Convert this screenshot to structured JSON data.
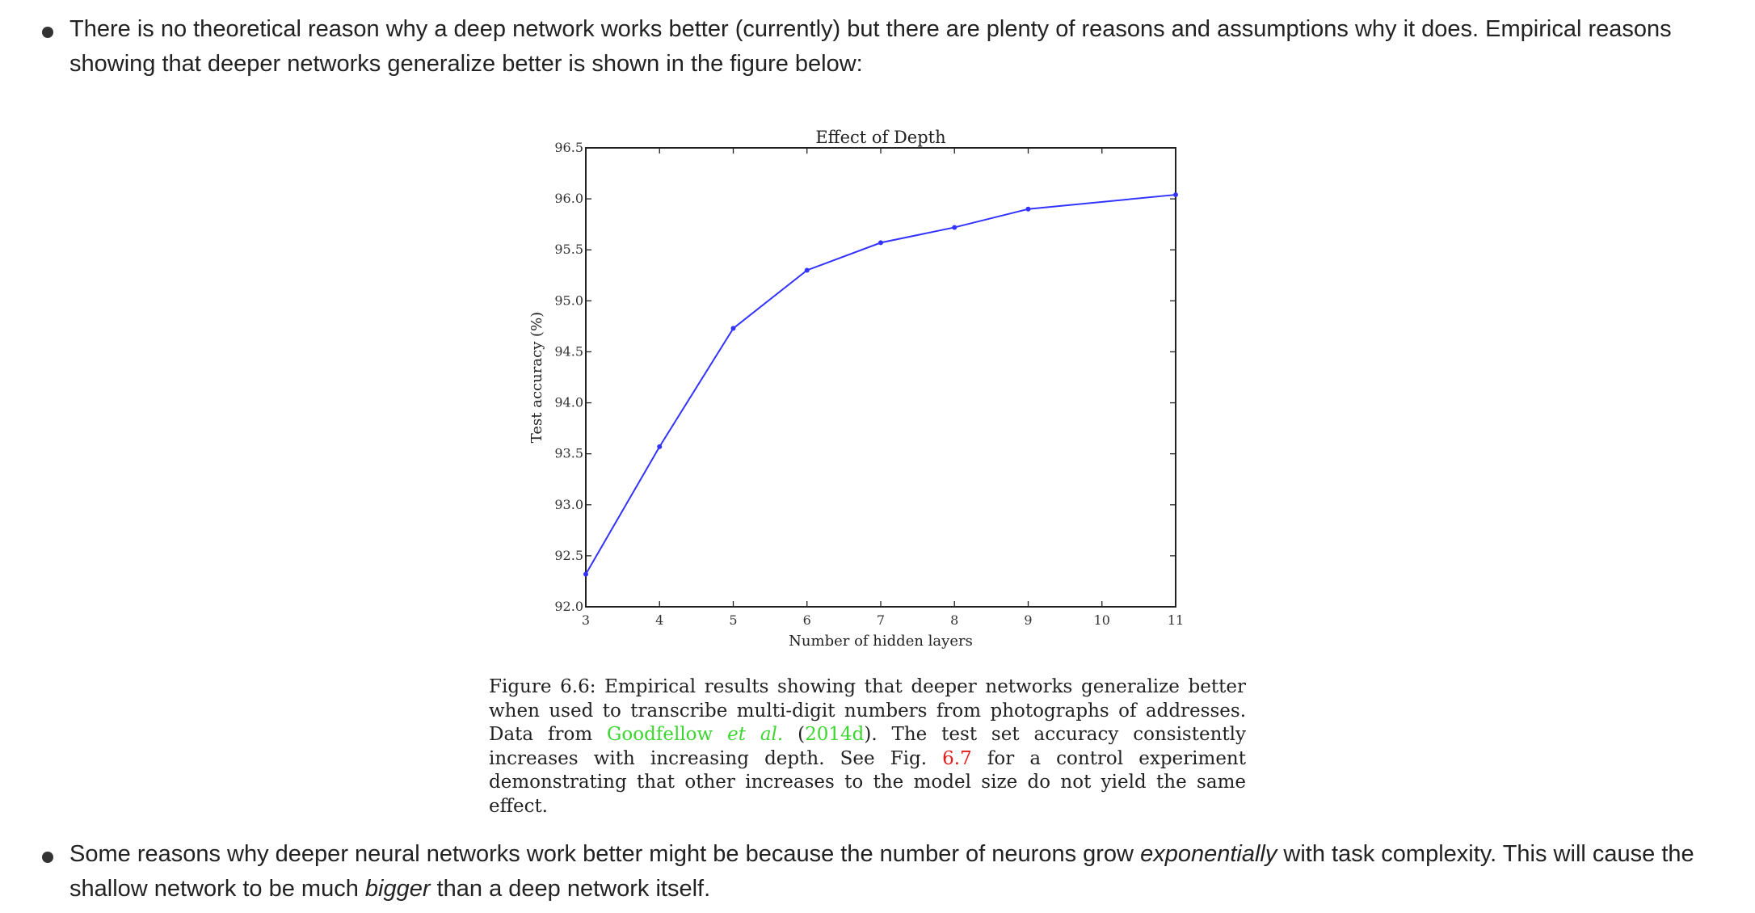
{
  "bullets": [
    {
      "text": "There is no theoretical reason why a deep network works better (currently) but there are plenty of reasons and assumptions why it does. Empirical reasons showing that deeper networks generalize better is shown in the figure below:"
    },
    {
      "text_1": "Some reasons why deeper neural networks work better might be because the number of neurons grow ",
      "em_1": "exponentially",
      "text_2": " with task complexity. This will cause the shallow network to be much ",
      "em_2": "bigger",
      "text_3": " than a deep network itself."
    }
  ],
  "chart_data": {
    "type": "line",
    "title": "Effect of Depth",
    "xlabel": "Number of hidden layers",
    "ylabel": "Test accuracy (%)",
    "x": [
      3,
      4,
      5,
      6,
      7,
      8,
      9,
      10,
      11
    ],
    "xticks": [
      "3",
      "4",
      "5",
      "6",
      "7",
      "8",
      "9",
      "10",
      "11"
    ],
    "yticks": [
      "92.0",
      "92.5",
      "93.0",
      "93.5",
      "94.0",
      "94.5",
      "95.0",
      "95.5",
      "96.0",
      "96.5"
    ],
    "xlim": [
      3,
      11
    ],
    "ylim": [
      92.0,
      96.5
    ],
    "grid": false,
    "series": [
      {
        "x": [
          3,
          4,
          5,
          6,
          7,
          8,
          9,
          11
        ],
        "values": [
          92.32,
          93.57,
          94.73,
          95.3,
          95.57,
          95.72,
          95.9,
          96.04
        ],
        "color": "#3333ff"
      }
    ]
  },
  "caption": {
    "t1": "Figure 6.6: Empirical results showing that deeper networks generalize better when used to transcribe multi-digit numbers from photographs of addresses. Data from ",
    "link_author": "Goodfellow ",
    "link_etal": "et al.",
    "t2": " (",
    "link_year": "2014d",
    "t3": "). The test set accuracy consistently increases with increasing depth. See Fig. ",
    "link_fig": "6.7",
    "t4": " for a control experiment demonstrating that other increases to the model size do not yield the same effect."
  },
  "colors": {
    "link_green": "#3bd62f",
    "link_red": "#e31b1b",
    "line_blue": "#3333ff"
  }
}
